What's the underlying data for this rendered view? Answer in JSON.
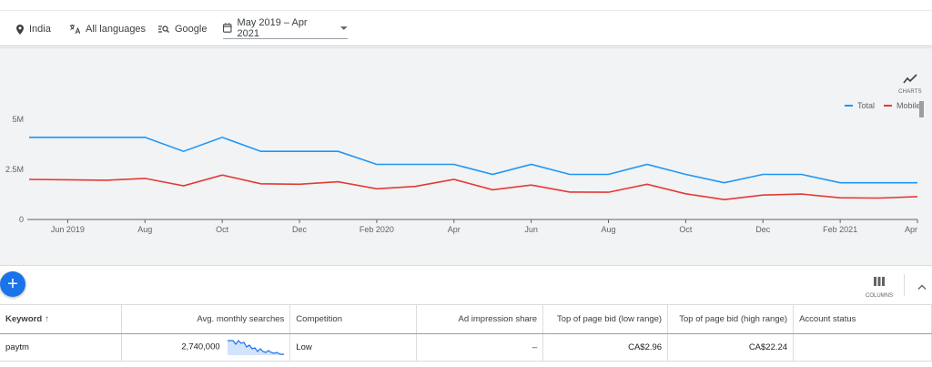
{
  "filters": {
    "location": "India",
    "language": "All languages",
    "network": "Google",
    "date_range": "May 2019 – Apr 2021"
  },
  "chart_panel": {
    "charts_button_label": "CHARTS"
  },
  "chart_data": {
    "type": "line",
    "x": [
      "May 2019",
      "Jun 2019",
      "Jul 2019",
      "Aug 2019",
      "Sep 2019",
      "Oct 2019",
      "Nov 2019",
      "Dec 2019",
      "Jan 2020",
      "Feb 2020",
      "Mar 2020",
      "Apr 2020",
      "May 2020",
      "Jun 2020",
      "Jul 2020",
      "Aug 2020",
      "Sep 2020",
      "Oct 2020",
      "Nov 2020",
      "Dec 2020",
      "Jan 2021",
      "Feb 2021",
      "Mar 2021",
      "Apr 2021"
    ],
    "x_tick_labels": [
      "Jun 2019",
      "Aug",
      "Oct",
      "Dec",
      "Feb 2020",
      "Apr",
      "Jun",
      "Aug",
      "Oct",
      "Dec",
      "Feb 2021",
      "Apr"
    ],
    "y_tick_labels": [
      "0",
      "2.5M",
      "5M"
    ],
    "ylim": [
      0,
      5000000
    ],
    "series": [
      {
        "name": "Total",
        "color": "#2196f3",
        "values": [
          4100000,
          4100000,
          4100000,
          4100000,
          3400000,
          4100000,
          3400000,
          3400000,
          3400000,
          2750000,
          2750000,
          2750000,
          2250000,
          2750000,
          2250000,
          2250000,
          2750000,
          2250000,
          1830000,
          2250000,
          2250000,
          1830000,
          1830000,
          1830000
        ]
      },
      {
        "name": "Mobile",
        "color": "#e53935",
        "values": [
          2000000,
          1980000,
          1960000,
          2050000,
          1680000,
          2220000,
          1780000,
          1760000,
          1880000,
          1530000,
          1650000,
          2000000,
          1480000,
          1720000,
          1370000,
          1360000,
          1760000,
          1280000,
          990000,
          1220000,
          1270000,
          1080000,
          1070000,
          1140000
        ]
      }
    ],
    "legend": "top-right",
    "grid": false
  },
  "toolbar": {
    "add_label": "+",
    "columns_label": "COLUMNS"
  },
  "table": {
    "headers": [
      "Keyword",
      "Avg. monthly searches",
      "Competition",
      "Ad impression share",
      "Top of page bid (low range)",
      "Top of page bid (high range)",
      "Account status"
    ],
    "rows": [
      {
        "keyword": "paytm",
        "avg_monthly_searches": "2,740,000",
        "competition": "Low",
        "ad_impression_share": "–",
        "bid_low": "CA$2.96",
        "bid_high": "CA$22.24",
        "account_status": ""
      }
    ]
  },
  "colors": {
    "accent": "#1a73e8",
    "total_line": "#2196f3",
    "mobile_line": "#e53935"
  }
}
